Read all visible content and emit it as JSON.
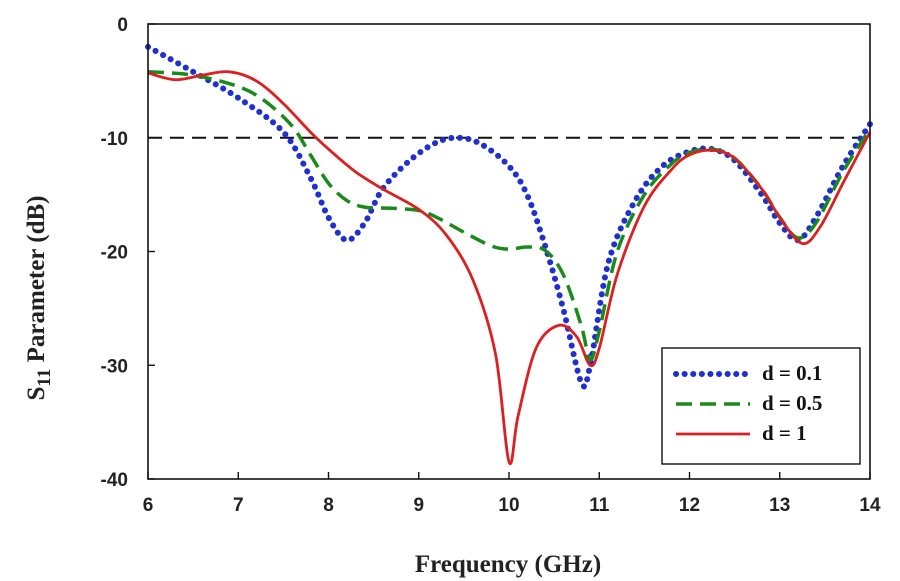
{
  "chart_data": {
    "type": "line",
    "title": "",
    "xlabel": "Frequency (GHz)",
    "ylabel": {
      "main": "S",
      "sub": "11",
      "rest": " Parameter (dB)"
    },
    "xlim": [
      6,
      14
    ],
    "ylim": [
      -40,
      0
    ],
    "xticks": [
      6,
      7,
      8,
      9,
      10,
      11,
      12,
      13,
      14
    ],
    "yticks": [
      0,
      -10,
      -20,
      -30,
      -40
    ],
    "grid": false,
    "legend_position": "bottom-right",
    "reference_line": {
      "y": -10,
      "style": "dashed",
      "color": "#111111"
    },
    "series": [
      {
        "name": "d = 0.1",
        "color": "#1f2fd0",
        "style": "dotted",
        "points": [
          [
            6.0,
            -2.0
          ],
          [
            6.5,
            -4.2
          ],
          [
            7.0,
            -6.5
          ],
          [
            7.5,
            -9.5
          ],
          [
            7.8,
            -13.5
          ],
          [
            8.0,
            -17.0
          ],
          [
            8.2,
            -19.0
          ],
          [
            8.4,
            -17.5
          ],
          [
            8.6,
            -14.5
          ],
          [
            8.9,
            -12.0
          ],
          [
            9.2,
            -10.4
          ],
          [
            9.45,
            -10.0
          ],
          [
            9.7,
            -10.6
          ],
          [
            10.0,
            -12.5
          ],
          [
            10.2,
            -15.0
          ],
          [
            10.4,
            -19.5
          ],
          [
            10.6,
            -25.0
          ],
          [
            10.8,
            -31.5
          ],
          [
            10.9,
            -30.0
          ],
          [
            11.1,
            -21.0
          ],
          [
            11.4,
            -15.5
          ],
          [
            11.7,
            -12.5
          ],
          [
            12.0,
            -11.2
          ],
          [
            12.25,
            -11.0
          ],
          [
            12.5,
            -12.0
          ],
          [
            12.8,
            -15.0
          ],
          [
            13.0,
            -17.5
          ],
          [
            13.2,
            -19.0
          ],
          [
            13.4,
            -17.0
          ],
          [
            13.7,
            -12.5
          ],
          [
            14.0,
            -8.8
          ]
        ]
      },
      {
        "name": "d = 0.5",
        "color": "#1a8a1a",
        "style": "dashed",
        "points": [
          [
            6.0,
            -4.2
          ],
          [
            6.5,
            -4.5
          ],
          [
            7.0,
            -5.5
          ],
          [
            7.3,
            -6.8
          ],
          [
            7.6,
            -9.0
          ],
          [
            7.8,
            -11.5
          ],
          [
            8.0,
            -14.0
          ],
          [
            8.2,
            -15.5
          ],
          [
            8.4,
            -16.1
          ],
          [
            8.7,
            -16.2
          ],
          [
            9.0,
            -16.4
          ],
          [
            9.2,
            -17.0
          ],
          [
            9.5,
            -18.3
          ],
          [
            9.8,
            -19.5
          ],
          [
            10.0,
            -19.8
          ],
          [
            10.2,
            -19.6
          ],
          [
            10.4,
            -19.9
          ],
          [
            10.6,
            -22.0
          ],
          [
            10.8,
            -26.5
          ],
          [
            10.9,
            -29.5
          ],
          [
            11.0,
            -27.0
          ],
          [
            11.2,
            -20.0
          ],
          [
            11.5,
            -15.0
          ],
          [
            11.8,
            -12.3
          ],
          [
            12.0,
            -11.3
          ],
          [
            12.25,
            -11.0
          ],
          [
            12.5,
            -11.8
          ],
          [
            12.8,
            -14.5
          ],
          [
            13.0,
            -17.0
          ],
          [
            13.2,
            -18.8
          ],
          [
            13.4,
            -17.5
          ],
          [
            13.7,
            -13.0
          ],
          [
            14.0,
            -9.2
          ]
        ]
      },
      {
        "name": "d = 1",
        "color": "#dd1f1f",
        "style": "solid",
        "points": [
          [
            6.0,
            -4.3
          ],
          [
            6.3,
            -4.9
          ],
          [
            6.6,
            -4.5
          ],
          [
            6.9,
            -4.2
          ],
          [
            7.2,
            -5.0
          ],
          [
            7.5,
            -7.0
          ],
          [
            7.8,
            -9.5
          ],
          [
            8.0,
            -11.0
          ],
          [
            8.3,
            -13.0
          ],
          [
            8.6,
            -14.5
          ],
          [
            9.0,
            -16.3
          ],
          [
            9.3,
            -18.5
          ],
          [
            9.6,
            -22.5
          ],
          [
            9.85,
            -29.0
          ],
          [
            10.0,
            -38.5
          ],
          [
            10.1,
            -34.5
          ],
          [
            10.3,
            -28.5
          ],
          [
            10.55,
            -26.5
          ],
          [
            10.75,
            -27.5
          ],
          [
            10.9,
            -30.0
          ],
          [
            11.0,
            -28.5
          ],
          [
            11.2,
            -22.0
          ],
          [
            11.5,
            -16.0
          ],
          [
            11.8,
            -12.8
          ],
          [
            12.0,
            -11.5
          ],
          [
            12.25,
            -11.1
          ],
          [
            12.5,
            -11.8
          ],
          [
            12.8,
            -14.5
          ],
          [
            13.0,
            -17.0
          ],
          [
            13.25,
            -19.3
          ],
          [
            13.45,
            -17.8
          ],
          [
            13.7,
            -14.0
          ],
          [
            14.0,
            -9.5
          ]
        ]
      }
    ]
  }
}
